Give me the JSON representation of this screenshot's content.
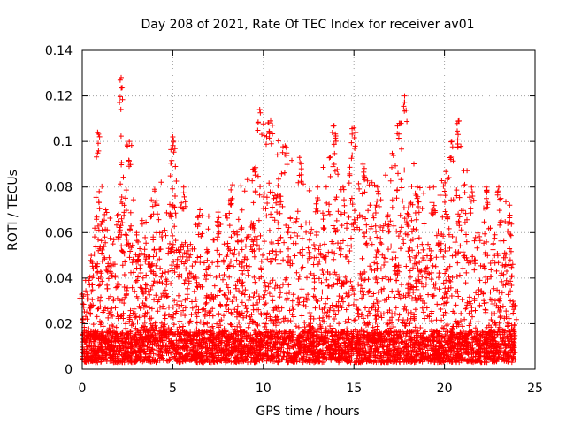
{
  "chart_data": {
    "type": "scatter",
    "title": "Day 208 of 2021, Rate Of TEC Index for receiver av01",
    "xlabel": "GPS time / hours",
    "ylabel": "ROTI / TECUs",
    "xlim": [
      0,
      25
    ],
    "ylim": [
      0,
      0.14
    ],
    "x_ticks": [
      0,
      5,
      10,
      15,
      20,
      25
    ],
    "x_tick_labels": [
      "0",
      "5",
      "10",
      "15",
      "20",
      "25"
    ],
    "y_ticks": [
      0,
      0.02,
      0.04,
      0.06,
      0.08,
      0.1,
      0.12,
      0.14
    ],
    "y_tick_labels": [
      "0",
      "0.02",
      "0.04",
      "0.06",
      "0.08",
      "0.1",
      "0.12",
      "0.14"
    ],
    "grid": true,
    "marker": "plus",
    "marker_color": "#ff0000",
    "x_data_range": [
      0,
      23.9
    ],
    "baseline_min": 0.003,
    "baseline_typical": 0.012,
    "envelope": [
      {
        "x": 0.0,
        "y": 0.033
      },
      {
        "x": 0.5,
        "y": 0.05
      },
      {
        "x": 0.85,
        "y": 0.104
      },
      {
        "x": 1.3,
        "y": 0.07
      },
      {
        "x": 2.0,
        "y": 0.068
      },
      {
        "x": 2.15,
        "y": 0.128
      },
      {
        "x": 2.6,
        "y": 0.1
      },
      {
        "x": 3.0,
        "y": 0.06
      },
      {
        "x": 4.0,
        "y": 0.079
      },
      {
        "x": 5.0,
        "y": 0.102
      },
      {
        "x": 5.6,
        "y": 0.08
      },
      {
        "x": 6.5,
        "y": 0.07
      },
      {
        "x": 7.5,
        "y": 0.069
      },
      {
        "x": 8.3,
        "y": 0.081
      },
      {
        "x": 9.5,
        "y": 0.088
      },
      {
        "x": 9.8,
        "y": 0.114
      },
      {
        "x": 10.4,
        "y": 0.109
      },
      {
        "x": 11.2,
        "y": 0.098
      },
      {
        "x": 12.0,
        "y": 0.093
      },
      {
        "x": 13.0,
        "y": 0.08
      },
      {
        "x": 13.9,
        "y": 0.107
      },
      {
        "x": 14.4,
        "y": 0.08
      },
      {
        "x": 15.0,
        "y": 0.106
      },
      {
        "x": 15.5,
        "y": 0.09
      },
      {
        "x": 16.3,
        "y": 0.08
      },
      {
        "x": 17.5,
        "y": 0.108
      },
      {
        "x": 17.8,
        "y": 0.12
      },
      {
        "x": 18.5,
        "y": 0.08
      },
      {
        "x": 19.4,
        "y": 0.08
      },
      {
        "x": 20.4,
        "y": 0.1
      },
      {
        "x": 20.8,
        "y": 0.109
      },
      {
        "x": 21.5,
        "y": 0.08
      },
      {
        "x": 22.3,
        "y": 0.08
      },
      {
        "x": 23.0,
        "y": 0.08
      },
      {
        "x": 23.6,
        "y": 0.072
      },
      {
        "x": 23.9,
        "y": 0.028
      }
    ]
  }
}
